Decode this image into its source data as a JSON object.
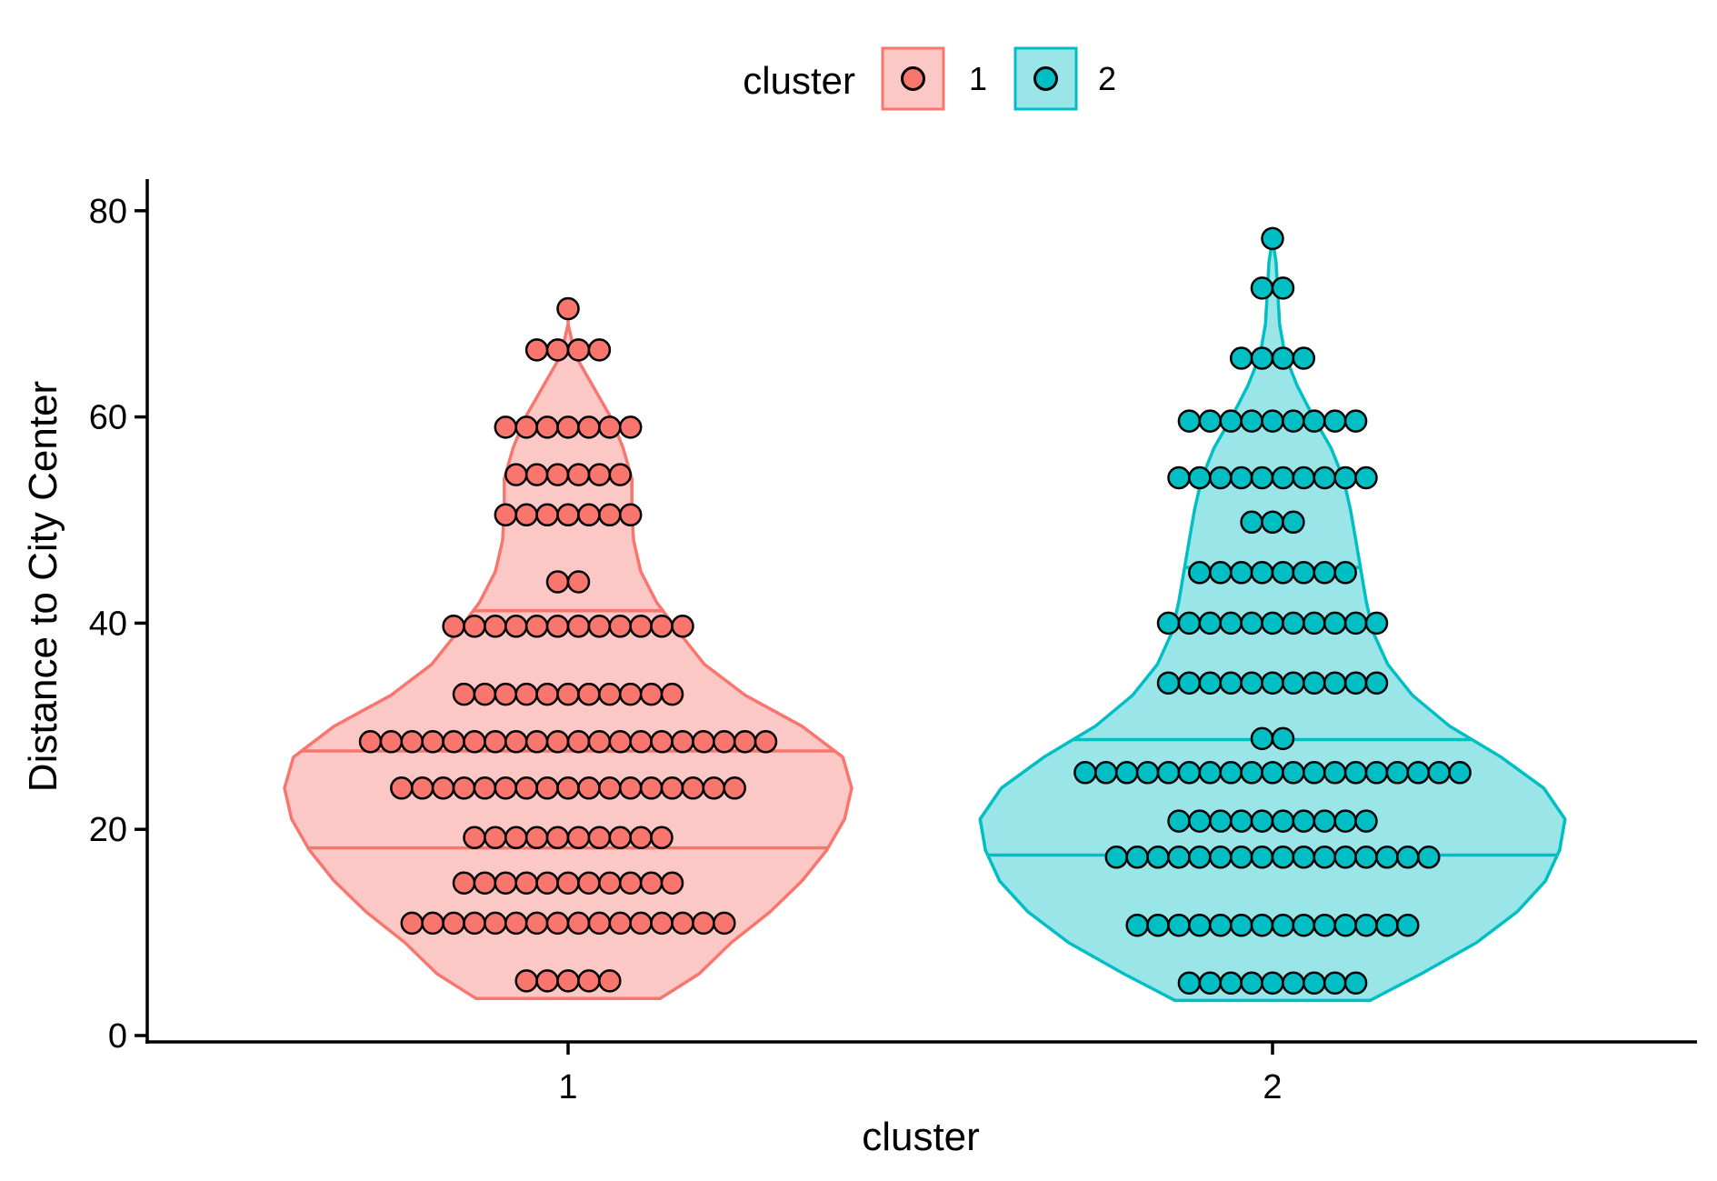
{
  "chart_data": {
    "type": "violin",
    "xlabel": "cluster",
    "ylabel": "Distance to City Center",
    "ylim": [
      0,
      80
    ],
    "yticks": [
      0,
      20,
      40,
      60,
      80
    ],
    "categories": [
      "1",
      "2"
    ],
    "grid": false,
    "legend": {
      "title": "cluster",
      "position": "top",
      "entries": [
        "1",
        "2"
      ]
    },
    "series": [
      {
        "name": "1",
        "fill": "#F8766D",
        "min": 3.6,
        "max": 70.5,
        "quantiles": [
          18.2,
          27.6,
          41.2
        ],
        "density": [
          [
            3.6,
            0.52
          ],
          [
            6,
            0.74
          ],
          [
            9,
            0.92
          ],
          [
            12,
            1.14
          ],
          [
            15,
            1.32
          ],
          [
            18,
            1.46
          ],
          [
            21,
            1.56
          ],
          [
            24,
            1.6
          ],
          [
            27,
            1.55
          ],
          [
            30,
            1.32
          ],
          [
            33,
            1.0
          ],
          [
            36,
            0.77
          ],
          [
            39,
            0.63
          ],
          [
            42,
            0.5
          ],
          [
            45,
            0.41
          ],
          [
            48,
            0.37
          ],
          [
            51,
            0.36
          ],
          [
            54,
            0.36
          ],
          [
            57,
            0.31
          ],
          [
            60,
            0.24
          ],
          [
            63,
            0.14
          ],
          [
            66,
            0.04
          ],
          [
            69,
            0.0
          ],
          [
            70.5,
            0.0
          ]
        ],
        "dots": [
          {
            "y": 5.3,
            "n": 5
          },
          {
            "y": 10.9,
            "n": 16
          },
          {
            "y": 14.8,
            "n": 11
          },
          {
            "y": 19.2,
            "n": 10
          },
          {
            "y": 24.0,
            "n": 17
          },
          {
            "y": 28.5,
            "n": 20
          },
          {
            "y": 33.1,
            "n": 11
          },
          {
            "y": 39.7,
            "n": 12
          },
          {
            "y": 44.0,
            "n": 2
          },
          {
            "y": 50.5,
            "n": 7
          },
          {
            "y": 54.4,
            "n": 6
          },
          {
            "y": 59.0,
            "n": 7
          },
          {
            "y": 66.5,
            "n": 4
          },
          {
            "y": 70.5,
            "n": 1
          }
        ]
      },
      {
        "name": "2",
        "fill": "#00BFC4",
        "min": 3.4,
        "max": 77.3,
        "quantiles": [
          17.5,
          28.7,
          45.4
        ],
        "density": [
          [
            3.4,
            0.55
          ],
          [
            6,
            0.84
          ],
          [
            9,
            1.15
          ],
          [
            12,
            1.38
          ],
          [
            15,
            1.54
          ],
          [
            18,
            1.62
          ],
          [
            21,
            1.65
          ],
          [
            24,
            1.53
          ],
          [
            27,
            1.29
          ],
          [
            30,
            1.0
          ],
          [
            33,
            0.79
          ],
          [
            36,
            0.65
          ],
          [
            39,
            0.57
          ],
          [
            42,
            0.53
          ],
          [
            45,
            0.5
          ],
          [
            48,
            0.47
          ],
          [
            51,
            0.44
          ],
          [
            54,
            0.4
          ],
          [
            57,
            0.33
          ],
          [
            60,
            0.23
          ],
          [
            63,
            0.14
          ],
          [
            66,
            0.07
          ],
          [
            69,
            0.04
          ],
          [
            72,
            0.03
          ],
          [
            75,
            0.02
          ],
          [
            77.3,
            0.0
          ]
        ],
        "dots": [
          {
            "y": 5.1,
            "n": 9
          },
          {
            "y": 10.7,
            "n": 14
          },
          {
            "y": 17.3,
            "n": 16
          },
          {
            "y": 20.8,
            "n": 10
          },
          {
            "y": 25.5,
            "n": 19
          },
          {
            "y": 28.8,
            "n": 2
          },
          {
            "y": 34.2,
            "n": 11
          },
          {
            "y": 40.0,
            "n": 11
          },
          {
            "y": 44.9,
            "n": 8
          },
          {
            "y": 49.8,
            "n": 3
          },
          {
            "y": 54.1,
            "n": 10
          },
          {
            "y": 59.6,
            "n": 9
          },
          {
            "y": 65.7,
            "n": 4
          },
          {
            "y": 72.5,
            "n": 2
          },
          {
            "y": 77.3,
            "n": 1
          }
        ]
      }
    ]
  }
}
